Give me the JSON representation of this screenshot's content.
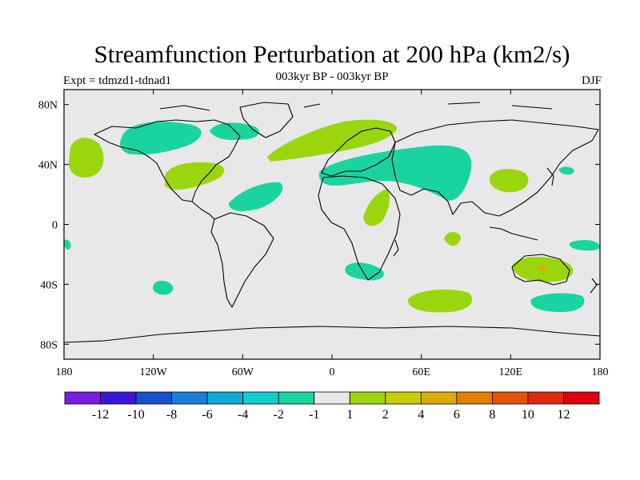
{
  "header": {
    "title": "Streamfunction Perturbation at 200 hPa (km2/s)",
    "left": "Expt = tdmzd1-tdnad1",
    "center": "003kyr BP - 003kyr BP",
    "right": "DJF"
  },
  "axes": {
    "lon_ticks": [
      "180",
      "120W",
      "60W",
      "0",
      "60E",
      "120E",
      "180"
    ],
    "lat_ticks": [
      "80N",
      "40N",
      "0",
      "40S",
      "80S"
    ]
  },
  "colorbar": {
    "colors": [
      "#7a1de0",
      "#3c16d8",
      "#1a50cc",
      "#1a7fd6",
      "#12aad6",
      "#12cfcf",
      "#1ad4a0",
      "#e8e8e8",
      "#9ad60e",
      "#c8cc0a",
      "#dcac06",
      "#e48000",
      "#e25608",
      "#de2a0e",
      "#e00010"
    ],
    "labels": [
      "-12",
      "-10",
      "-8",
      "-6",
      "-4",
      "-2",
      "-1",
      "1",
      "2",
      "4",
      "6",
      "8",
      "10",
      "12"
    ]
  },
  "colors": {
    "ocean": "#e8e8e8",
    "negative": "#1ad4a0",
    "positive": "#9ad60e",
    "strong_positive": "#c8cc0a"
  }
}
